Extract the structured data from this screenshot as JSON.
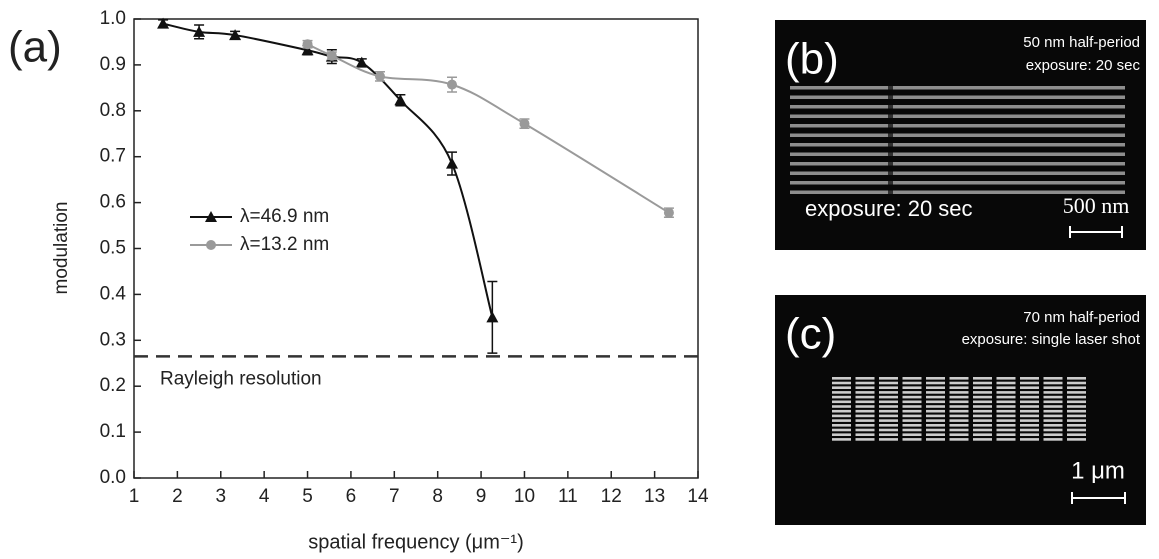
{
  "chart_data": {
    "type": "line",
    "panel_label": "(a)",
    "xlabel": "spatial frequency (μm⁻¹)",
    "ylabel": "modulation",
    "xlim": [
      1,
      14
    ],
    "xticks": [
      1,
      2,
      3,
      4,
      5,
      6,
      7,
      8,
      9,
      10,
      11,
      12,
      13,
      14
    ],
    "ylim": [
      0,
      1
    ],
    "yticks": [
      {
        "value": 0,
        "label": "0.0"
      },
      0.1,
      0.2,
      0.3,
      0.4,
      0.5,
      0.6,
      0.7,
      0.8,
      0.9,
      {
        "value": 1,
        "label": "1.0"
      }
    ],
    "series": [
      {
        "name": "λ=46.9 nm",
        "color": "#111111",
        "marker": "triangle",
        "x": [
          1.67,
          2.5,
          3.33,
          5.0,
          5.56,
          6.25,
          7.14,
          8.33,
          9.26
        ],
        "values": [
          0.99,
          0.972,
          0.965,
          0.932,
          0.918,
          0.905,
          0.823,
          0.685,
          0.35
        ],
        "errors": [
          0.008,
          0.015,
          0.008,
          0.01,
          0.015,
          0.008,
          0.012,
          0.025,
          0.078
        ]
      },
      {
        "name": "λ=13.2 nm",
        "color": "#9a9a9a",
        "marker": "circle",
        "x": [
          5.0,
          5.56,
          6.67,
          8.33,
          10.0,
          13.33
        ],
        "values": [
          0.945,
          0.92,
          0.875,
          0.857,
          0.772,
          0.578
        ],
        "errors": [
          0.008,
          0.008,
          0.01,
          0.016,
          0.01,
          0.01
        ]
      }
    ],
    "reference_line": {
      "value": 0.265,
      "label": "Rayleigh resolution"
    }
  },
  "images": [
    {
      "label": "(b)",
      "texts": [
        "50 nm half-period",
        "exposure: 20 sec"
      ],
      "caption": "exposure: 20 sec",
      "scale": "500 nm"
    },
    {
      "label": "(c)",
      "texts": [
        "70 nm half-period",
        "exposure: single laser shot"
      ],
      "scale": "1 μm"
    }
  ]
}
